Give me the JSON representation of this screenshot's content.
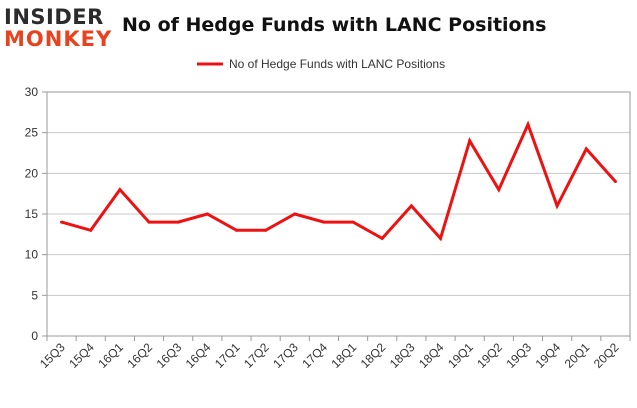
{
  "brand": {
    "line1": "INSIDER",
    "line2": "MONKEY"
  },
  "chart_data": {
    "type": "line",
    "title": "No of Hedge Funds with LANC Positions",
    "xlabel": "",
    "ylabel": "",
    "categories": [
      "15Q3",
      "15Q4",
      "16Q1",
      "16Q2",
      "16Q3",
      "16Q4",
      "17Q1",
      "17Q2",
      "17Q3",
      "17Q4",
      "18Q1",
      "18Q2",
      "18Q3",
      "18Q4",
      "19Q1",
      "19Q2",
      "19Q3",
      "19Q4",
      "20Q1",
      "20Q2"
    ],
    "series": [
      {
        "name": "No of Hedge Funds with LANC Positions",
        "values": [
          14,
          13,
          18,
          14,
          14,
          15,
          13,
          13,
          15,
          14,
          14,
          12,
          16,
          12,
          24,
          18,
          26,
          16,
          23,
          19
        ],
        "color": "#ee1111"
      }
    ],
    "ylim": [
      0,
      30
    ],
    "yticks": [
      0,
      5,
      10,
      15,
      20,
      25,
      30
    ],
    "grid": true,
    "legend": "top-center"
  }
}
